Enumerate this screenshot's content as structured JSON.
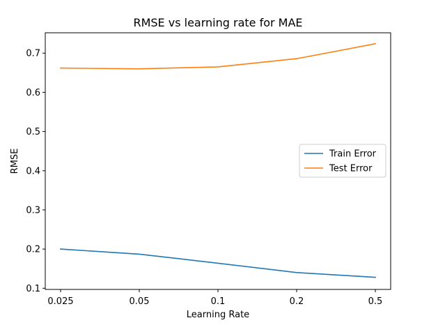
{
  "chart_data": {
    "type": "line",
    "title": "RMSE vs learning rate for MAE",
    "xlabel": "Learning Rate",
    "ylabel": "RMSE",
    "categories": [
      "0.025",
      "0.05",
      "0.1",
      "0.2",
      "0.5"
    ],
    "ylim": [
      0.097,
      0.752
    ],
    "yticks": [
      "0.1",
      "0.2",
      "0.3",
      "0.4",
      "0.5",
      "0.6",
      "0.7"
    ],
    "grid": false,
    "legend_position": "center-right",
    "series": [
      {
        "name": "Train Error",
        "color": "#1f77b4",
        "values": [
          0.2,
          0.187,
          0.164,
          0.14,
          0.128
        ]
      },
      {
        "name": "Test Error",
        "color": "#ff7f0e",
        "values": [
          0.662,
          0.66,
          0.665,
          0.686,
          0.724
        ]
      }
    ]
  }
}
